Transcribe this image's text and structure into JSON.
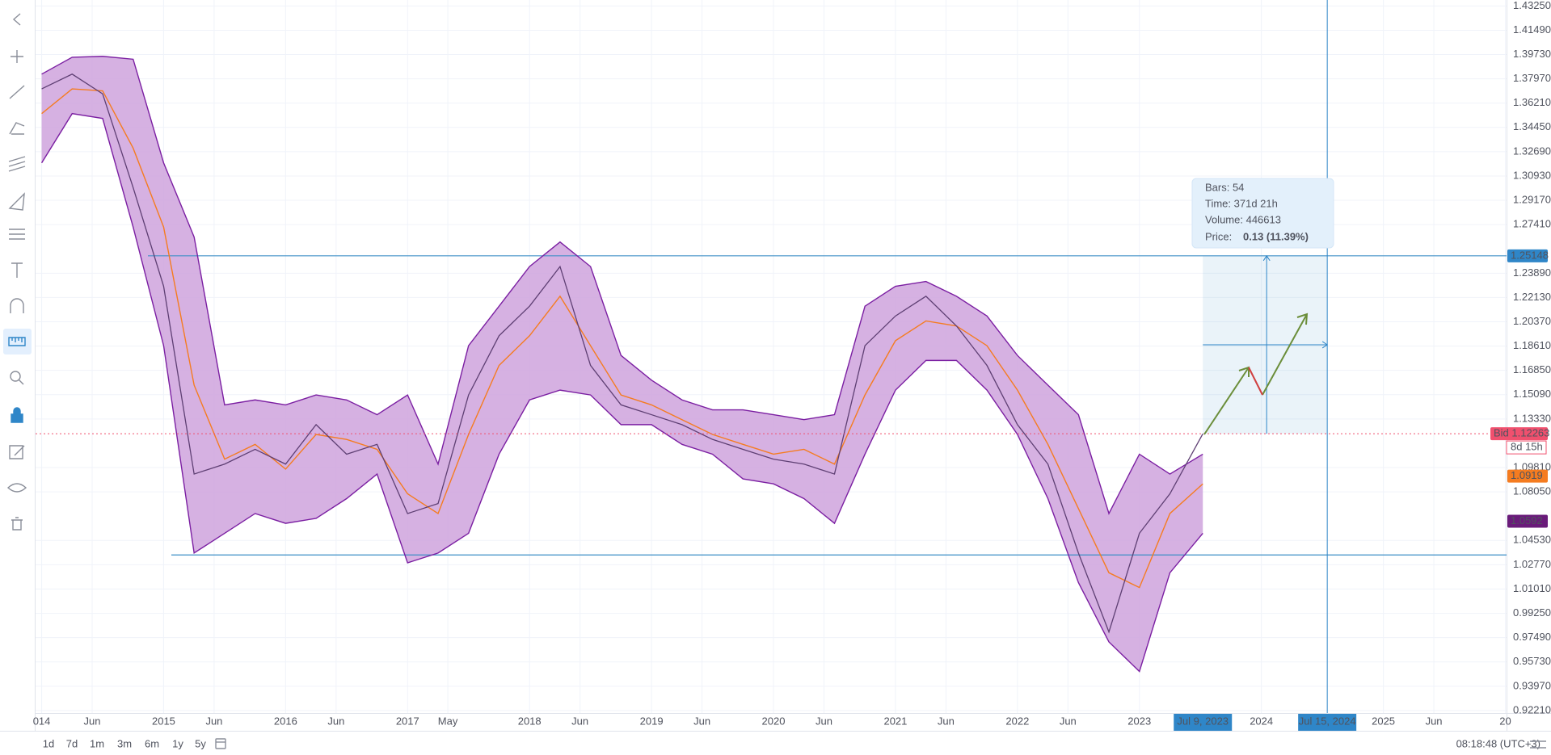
{
  "chart_data": {
    "type": "line",
    "xlim": [
      2013.95,
      2026.01
    ],
    "ylim": [
      0.9203,
      1.4368
    ],
    "grid": true,
    "band_fill": "#cfa3dd",
    "xticks": [
      {
        "value": 2014,
        "label": "014"
      },
      {
        "value": 2014.414,
        "label": "Jun"
      },
      2015,
      {
        "value": 2015.414,
        "label": "Jun"
      },
      2016,
      {
        "value": 2016.414,
        "label": "Jun"
      },
      2017,
      {
        "value": 2017.33,
        "label": "May"
      },
      2018,
      {
        "value": 2018.414,
        "label": "Jun"
      },
      2019,
      {
        "value": 2019.414,
        "label": "Jun"
      },
      2020,
      {
        "value": 2020.414,
        "label": "Jun"
      },
      2021,
      {
        "value": 2021.414,
        "label": "Jun"
      },
      2022,
      {
        "value": 2022.414,
        "label": "Jun"
      },
      2023,
      2024,
      2025,
      {
        "value": 2025.414,
        "label": "Jun"
      },
      {
        "value": 2026,
        "label": "20"
      }
    ],
    "yticks": [
      {
        "value": 1.4325,
        "label": "1.43250"
      },
      {
        "value": 1.4149,
        "label": "1.41490"
      },
      {
        "value": 1.3973,
        "label": "1.39730"
      },
      {
        "value": 1.3797,
        "label": "1.37970"
      },
      {
        "value": 1.3621,
        "label": "1.36210"
      },
      {
        "value": 1.3445,
        "label": "1.34450"
      },
      {
        "value": 1.3269,
        "label": "1.32690"
      },
      {
        "value": 1.3093,
        "label": "1.30930"
      },
      {
        "value": 1.2917,
        "label": "1.29170"
      },
      {
        "value": 1.2741,
        "label": "1.27410"
      },
      {
        "value": 1.2389,
        "label": "1.23890"
      },
      {
        "value": 1.2213,
        "label": "1.22130"
      },
      {
        "value": 1.2037,
        "label": "1.20370"
      },
      {
        "value": 1.1861,
        "label": "1.18610"
      },
      {
        "value": 1.1685,
        "label": "1.16850"
      },
      {
        "value": 1.1509,
        "label": "1.15090"
      },
      {
        "value": 1.1333,
        "label": "1.13330"
      },
      {
        "value": 1.0981,
        "label": "1.09810"
      },
      {
        "value": 1.0805,
        "label": "1.08050"
      },
      {
        "value": 1.0453,
        "label": "1.04530"
      },
      {
        "value": 1.0277,
        "label": "1.02770"
      },
      {
        "value": 1.0101,
        "label": "1.01010"
      },
      {
        "value": 0.9925,
        "label": "0.99250"
      },
      {
        "value": 0.9749,
        "label": "0.97490"
      },
      {
        "value": 0.9573,
        "label": "0.95730"
      },
      {
        "value": 0.9397,
        "label": "0.93970"
      },
      {
        "value": 0.9221,
        "label": "0.92210"
      }
    ],
    "x": [
      2014.0,
      2014.25,
      2014.5,
      2014.75,
      2015.0,
      2015.25,
      2015.5,
      2015.75,
      2016.0,
      2016.25,
      2016.5,
      2016.75,
      2017.0,
      2017.25,
      2017.5,
      2017.75,
      2018.0,
      2018.25,
      2018.5,
      2018.75,
      2019.0,
      2019.25,
      2019.5,
      2019.75,
      2020.0,
      2020.25,
      2020.5,
      2020.75,
      2021.0,
      2021.25,
      2021.5,
      2021.75,
      2022.0,
      2022.25,
      2022.5,
      2022.75,
      2023.0,
      2023.25,
      2023.52
    ],
    "series": [
      {
        "color": "#7b1fa2",
        "values": [
          1.3831,
          1.3953,
          1.396,
          1.3939,
          1.3188,
          1.2651,
          1.1435,
          1.1471,
          1.1435,
          1.1507,
          1.1471,
          1.1364,
          1.1507,
          1.1006,
          1.1864,
          1.215,
          1.2437,
          1.2615,
          1.2437,
          1.1793,
          1.1614,
          1.1471,
          1.1399,
          1.1399,
          1.1364,
          1.1328,
          1.1364,
          1.215,
          1.2294,
          1.2329,
          1.2222,
          1.2079,
          1.1793,
          1.1578,
          1.1364,
          1.0648,
          1.1078,
          1.0934,
          1.1078
        ]
      },
      {
        "color": "#7b1fa2",
        "values": [
          1.3188,
          1.3545,
          1.351,
          1.2723,
          1.1864,
          1.0362,
          1.0505,
          1.0648,
          1.0577,
          1.0613,
          1.0756,
          1.0934,
          1.0291,
          1.0362,
          1.0505,
          1.1078,
          1.1471,
          1.1542,
          1.1507,
          1.1292,
          1.1292,
          1.1149,
          1.1078,
          1.0899,
          1.0863,
          1.0756,
          1.0577,
          1.1078,
          1.1542,
          1.1757,
          1.1757,
          1.1542,
          1.1221,
          1.0756,
          1.0148,
          0.9718,
          0.9504,
          1.0219,
          1.0505
        ]
      },
      {
        "color": "#f57c20",
        "values": [
          1.3545,
          1.3724,
          1.371,
          1.3295,
          1.2723,
          1.1578,
          1.1042,
          1.1149,
          1.097,
          1.1221,
          1.1185,
          1.1113,
          1.0791,
          1.0648,
          1.1221,
          1.1721,
          1.1936,
          1.2222,
          1.1864,
          1.1507,
          1.1435,
          1.1328,
          1.1221,
          1.1149,
          1.1078,
          1.1113,
          1.1006,
          1.1507,
          1.19,
          1.2043,
          1.2007,
          1.1864,
          1.1542,
          1.1149,
          1.0684,
          1.0219,
          1.0112,
          1.0648,
          1.0863
        ]
      },
      {
        "color": "#5e3f73",
        "values": [
          1.3724,
          1.3831,
          1.3688,
          1.3009,
          1.2294,
          1.0934,
          1.1006,
          1.1113,
          1.1006,
          1.1292,
          1.1078,
          1.1149,
          1.0648,
          1.072,
          1.1507,
          1.1936,
          1.215,
          1.2437,
          1.1721,
          1.1435,
          1.1364,
          1.1292,
          1.1185,
          1.1113,
          1.1042,
          1.1006,
          1.0934,
          1.1864,
          1.2079,
          1.2222,
          1.2007,
          1.1721,
          1.1292,
          1.1006,
          1.0362,
          0.979,
          1.0505,
          1.0791,
          1.1226
        ]
      }
    ],
    "levels": [
      1.25148,
      1.0348
    ],
    "level_color": "#3d8fc6",
    "price_badges": [
      {
        "value": 1.25148,
        "label": "1.25148",
        "color": "#2f86c8"
      },
      {
        "value": 1.12263,
        "label": "Bid 1.12263",
        "color": "#f0506e"
      },
      {
        "value": 1.0919,
        "label": "1.0919",
        "color": "#f57c20"
      },
      {
        "value": 1.0592,
        "label": "1.0592",
        "color": "#6a1b7a"
      }
    ],
    "bid_countdown": "8d 15h",
    "time_badges": [
      {
        "value": 2023.52,
        "label": "Jul 9, 2023"
      },
      {
        "value": 2024.54,
        "label": "Jul 15, 2024"
      }
    ],
    "measure": {
      "bars": "Bars: 54",
      "time": "Time: 371d 21h",
      "volume": "Volume: 446613",
      "price_label": "Price:",
      "price": "0.13 (11.39%)"
    }
  },
  "toolbar": {
    "intervals": [
      "1d",
      "7d",
      "1m",
      "3m",
      "6m",
      "1y",
      "5y"
    ],
    "clock": "08:18:48 (UTC+3)"
  }
}
